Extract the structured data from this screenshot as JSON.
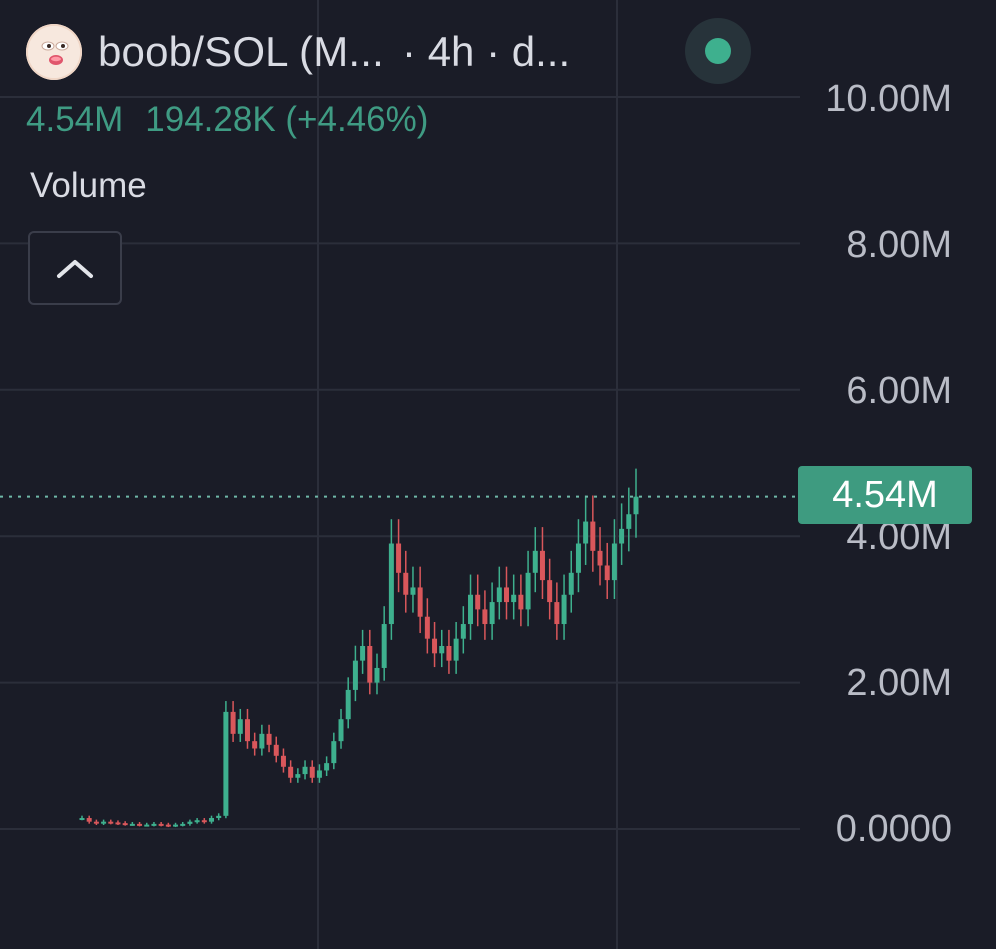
{
  "header": {
    "pair": "boob/SOL (M...",
    "interval": "· 4h · d..."
  },
  "price": {
    "last": "4.54M",
    "change": "194.28K (+4.46%)"
  },
  "volume_label": "Volume",
  "colors": {
    "background": "#1a1c27",
    "up": "#3eb08e",
    "down": "#d9575b",
    "grid": "#2b2e3a",
    "text": "#d9dbe3",
    "badge": "#3e9b80"
  },
  "icons": {
    "collapse": "chevron-up-icon",
    "status": "live-status-dot"
  },
  "y_axis": {
    "ticks": [
      "10.00M",
      "8.00M",
      "6.00M",
      "4.00M",
      "2.00M",
      "0.0000"
    ],
    "last_value_label": "4.54M"
  },
  "chart_data": {
    "type": "candlestick",
    "ylim": [
      0,
      10000000
    ],
    "last_value": 4540000,
    "grid": true,
    "values_close": [
      0.15,
      0.1,
      0.08,
      0.1,
      0.09,
      0.08,
      0.07,
      0.07,
      0.06,
      0.06,
      0.07,
      0.06,
      0.05,
      0.06,
      0.07,
      0.1,
      0.12,
      0.1,
      0.15,
      0.18,
      1.6,
      1.3,
      1.5,
      1.2,
      1.1,
      1.3,
      1.15,
      1.0,
      0.85,
      0.7,
      0.75,
      0.85,
      0.7,
      0.8,
      0.9,
      1.2,
      1.5,
      1.9,
      2.3,
      2.5,
      2.0,
      2.2,
      2.8,
      3.9,
      3.5,
      3.2,
      3.3,
      2.9,
      2.6,
      2.4,
      2.5,
      2.3,
      2.6,
      2.8,
      3.2,
      3.0,
      2.8,
      3.1,
      3.3,
      3.1,
      3.2,
      3.0,
      3.5,
      3.8,
      3.4,
      3.1,
      2.8,
      3.2,
      3.5,
      3.9,
      4.2,
      3.8,
      3.6,
      3.4,
      3.9,
      4.1,
      4.3,
      4.54
    ]
  }
}
